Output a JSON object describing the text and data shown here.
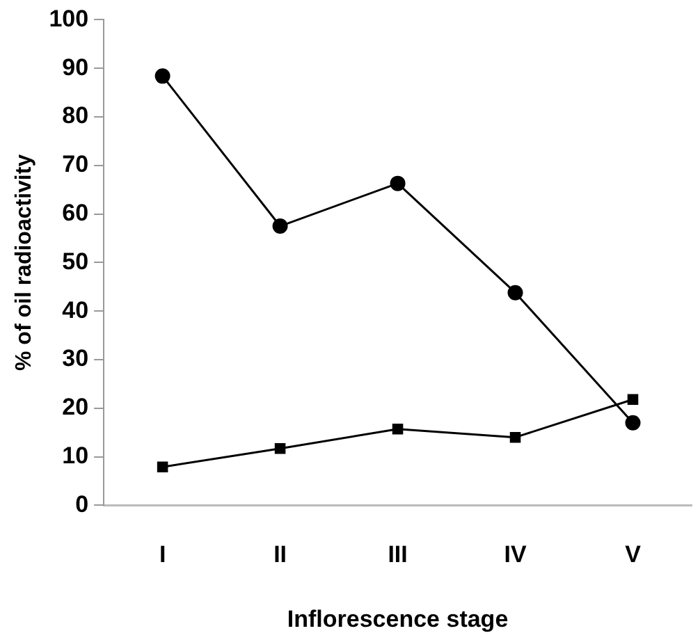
{
  "chart_data": {
    "type": "line",
    "xlabel": "Inflorescence stage",
    "ylabel": "% of oil radioactivity",
    "categories": [
      "I",
      "II",
      "III",
      "IV",
      "V"
    ],
    "series": [
      {
        "color": "#000000",
        "marker": "circle",
        "values": [
          88.4,
          57.5,
          66.3,
          43.8,
          17.0
        ]
      },
      {
        "color": "#000000",
        "marker": "square",
        "values": [
          7.9,
          11.7,
          15.7,
          14.0,
          21.8
        ]
      }
    ],
    "ylim": [
      0,
      100
    ],
    "yticks": [
      0,
      10,
      20,
      30,
      40,
      50,
      60,
      70,
      80,
      90,
      100
    ],
    "grid": false,
    "legend": false,
    "line_style": "solid"
  }
}
